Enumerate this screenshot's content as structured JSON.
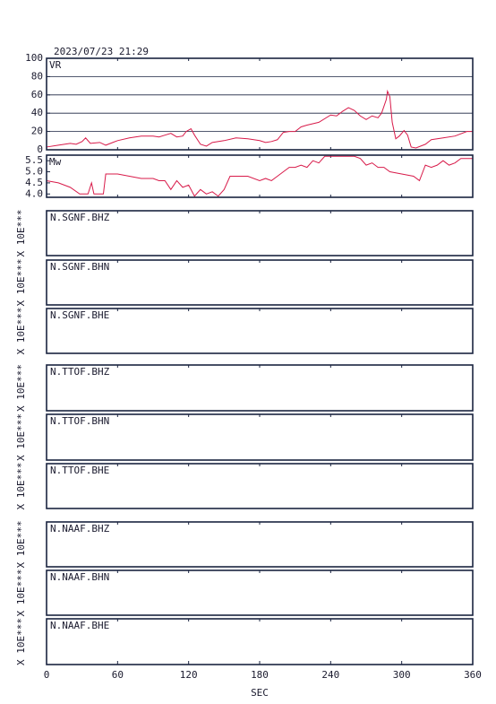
{
  "title": "2023/07/23 21:29",
  "x_axis": {
    "label": "SEC",
    "xlim": [
      0,
      360
    ],
    "xticks": [
      0,
      60,
      120,
      180,
      240,
      300,
      360
    ]
  },
  "chart_data": [
    {
      "type": "line",
      "label": "VR",
      "color": "#d81b4a",
      "xlim": [
        0,
        360
      ],
      "ylim": [
        0,
        100
      ],
      "yticks": [
        0,
        20,
        40,
        60,
        80,
        100
      ],
      "grid": true,
      "x": [
        0,
        10,
        20,
        25,
        30,
        33,
        37,
        45,
        50,
        60,
        70,
        80,
        90,
        95,
        100,
        105,
        110,
        115,
        118,
        122,
        125,
        130,
        135,
        140,
        150,
        160,
        170,
        180,
        185,
        190,
        195,
        200,
        205,
        210,
        215,
        220,
        230,
        240,
        245,
        250,
        255,
        260,
        265,
        270,
        275,
        280,
        283,
        287,
        288,
        290,
        292,
        295,
        298,
        302,
        305,
        308,
        312,
        320,
        325,
        335,
        345,
        355,
        360
      ],
      "values": [
        3,
        5,
        7,
        6,
        9,
        13,
        7,
        8,
        5,
        10,
        13,
        15,
        15,
        14,
        16,
        18,
        14,
        15,
        20,
        23,
        16,
        6,
        4,
        8,
        10,
        13,
        12,
        10,
        8,
        9,
        11,
        19,
        20,
        20,
        25,
        27,
        30,
        38,
        37,
        42,
        46,
        43,
        37,
        33,
        37,
        35,
        40,
        55,
        64,
        58,
        30,
        12,
        15,
        21,
        16,
        3,
        2,
        6,
        11,
        13,
        15,
        20,
        20
      ]
    },
    {
      "type": "line",
      "label": "Mw",
      "color": "#d81b4a",
      "xlim": [
        0,
        360
      ],
      "ylim": [
        3.85,
        5.75
      ],
      "yticks": [
        {
          "value": 4,
          "label": "4.0"
        },
        4.5,
        {
          "value": 5,
          "label": "5.0"
        },
        5.5
      ],
      "grid": false,
      "x": [
        0,
        10,
        20,
        28,
        35,
        38,
        40,
        48,
        50,
        60,
        70,
        80,
        90,
        95,
        100,
        105,
        110,
        115,
        120,
        125,
        130,
        135,
        140,
        145,
        150,
        155,
        165,
        170,
        180,
        185,
        190,
        195,
        205,
        210,
        215,
        220,
        225,
        230,
        235,
        245,
        260,
        265,
        270,
        275,
        280,
        285,
        290,
        300,
        310,
        315,
        320,
        325,
        330,
        335,
        340,
        345,
        350,
        360
      ],
      "values": [
        4.6,
        4.5,
        4.3,
        4.0,
        4.0,
        4.5,
        4.0,
        4.0,
        4.9,
        4.9,
        4.8,
        4.7,
        4.7,
        4.6,
        4.6,
        4.2,
        4.6,
        4.3,
        4.4,
        3.9,
        4.2,
        4.0,
        4.1,
        3.9,
        4.2,
        4.8,
        4.8,
        4.8,
        4.6,
        4.7,
        4.6,
        4.8,
        5.2,
        5.2,
        5.3,
        5.2,
        5.5,
        5.4,
        5.7,
        5.7,
        5.7,
        5.6,
        5.3,
        5.4,
        5.2,
        5.2,
        5.0,
        4.9,
        4.8,
        4.6,
        5.3,
        5.2,
        5.3,
        5.5,
        5.3,
        5.4,
        5.6,
        5.6
      ]
    }
  ],
  "panels": [
    {
      "label": "N.SGNF.BHZ",
      "side_label": "X 10E***"
    },
    {
      "label": "N.SGNF.BHN",
      "side_label": "X 10E***"
    },
    {
      "label": "N.SGNF.BHE",
      "side_label": "X 10E***"
    },
    {
      "label": "N.TTOF.BHZ",
      "side_label": "X 10E***"
    },
    {
      "label": "N.TTOF.BHN",
      "side_label": "X 10E***"
    },
    {
      "label": "N.TTOF.BHE",
      "side_label": "X 10E***"
    },
    {
      "label": "N.NAAF.BHZ",
      "side_label": "X 10E***"
    },
    {
      "label": "N.NAAF.BHN",
      "side_label": "X 10E***"
    },
    {
      "label": "N.NAAF.BHE",
      "side_label": "X 10E***"
    }
  ]
}
